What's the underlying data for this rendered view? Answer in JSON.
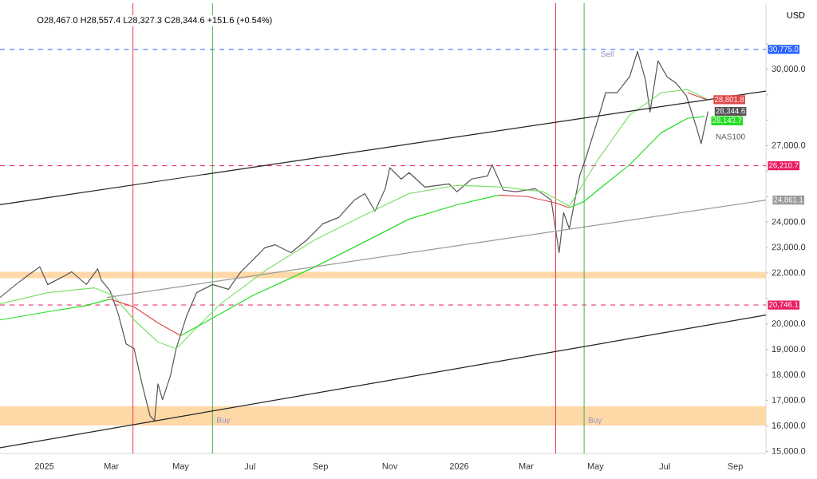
{
  "chart_data": {
    "type": "line",
    "subtitle": "O28,467.0 H28,557.4 L28,327.3 C28,344.6 +151.6 (+0.54%)",
    "xlim": [
      "2024-11-23",
      "2026-09-28"
    ],
    "xticks": [
      {
        "value": "2025-01-01",
        "label": "2025"
      },
      {
        "value": "2025-03-01",
        "label": "Mar"
      },
      {
        "value": "2025-05-01",
        "label": "May"
      },
      {
        "value": "2025-07-01",
        "label": "Jul"
      },
      {
        "value": "2025-09-01",
        "label": "Sep"
      },
      {
        "value": "2025-11-01",
        "label": "Nov"
      },
      {
        "value": "2026-01-01",
        "label": "2026"
      },
      {
        "value": "2026-03-01",
        "label": "Mar"
      },
      {
        "value": "2026-05-01",
        "label": "May"
      },
      {
        "value": "2026-07-01",
        "label": "Jul"
      },
      {
        "value": "2026-09-01",
        "label": "Sep"
      }
    ],
    "ylim": [
      14920,
      32590
    ],
    "yticks": [
      {
        "value": 15000,
        "label": "15,000.0"
      },
      {
        "value": 16000,
        "label": "16,000.0"
      },
      {
        "value": 17000,
        "label": "17,000.0"
      },
      {
        "value": 18000,
        "label": "18,000.0"
      },
      {
        "value": 19000,
        "label": "19,000.0"
      },
      {
        "value": 20000,
        "label": "20,000.0"
      },
      {
        "value": 21000,
        "label": null
      },
      {
        "value": 22000,
        "label": "22,000.0"
      },
      {
        "value": 23000,
        "label": "23,000.0"
      },
      {
        "value": 24000,
        "label": "24,000.0"
      },
      {
        "value": 25000,
        "label": null
      },
      {
        "value": 26000,
        "label": null
      },
      {
        "value": 27000,
        "label": "27,000.0"
      },
      {
        "value": 28000,
        "label": null
      },
      {
        "value": 29000,
        "label": null
      },
      {
        "value": 30000,
        "label": "30,000.0"
      },
      {
        "value": 31000,
        "label": null
      }
    ],
    "series": [
      {
        "name": "NAS100",
        "color": "#555555",
        "x": [
          "2024-11-23",
          "2024-12-07",
          "2024-12-18",
          "2024-12-28",
          "2025-01-04",
          "2025-01-15",
          "2025-01-25",
          "2025-02-07",
          "2025-02-17",
          "2025-02-20",
          "2025-02-28",
          "2025-03-07",
          "2025-03-14",
          "2025-03-21",
          "2025-03-28",
          "2025-04-04",
          "2025-04-08",
          "2025-04-11",
          "2025-04-15",
          "2025-04-22",
          "2025-04-27",
          "2025-05-06",
          "2025-05-15",
          "2025-05-29",
          "2025-06-12",
          "2025-06-23",
          "2025-07-03",
          "2025-07-14",
          "2025-07-23",
          "2025-08-06",
          "2025-08-20",
          "2025-09-03",
          "2025-09-17",
          "2025-10-01",
          "2025-10-10",
          "2025-10-19",
          "2025-10-28",
          "2025-11-01",
          "2025-11-11",
          "2025-11-18",
          "2025-12-02",
          "2025-12-23",
          "2025-12-30",
          "2026-01-12",
          "2026-01-26",
          "2026-01-30",
          "2026-02-09",
          "2026-02-20",
          "2026-03-09",
          "2026-03-23",
          "2026-03-30",
          "2026-04-03",
          "2026-04-08",
          "2026-04-17",
          "2026-04-22",
          "2026-05-03",
          "2026-05-10",
          "2026-05-20",
          "2026-05-31",
          "2026-06-07",
          "2026-06-14",
          "2026-06-18",
          "2026-06-25",
          "2026-07-03",
          "2026-07-11",
          "2026-07-20",
          "2026-07-29",
          "2026-08-02",
          "2026-08-08"
        ],
        "values": [
          21040,
          21550,
          21920,
          22240,
          21550,
          21800,
          22050,
          21550,
          22170,
          21730,
          21290,
          20400,
          19220,
          19030,
          17650,
          16400,
          16210,
          17650,
          17030,
          17970,
          19030,
          20290,
          21230,
          21550,
          21360,
          22050,
          22490,
          22990,
          23110,
          22800,
          23300,
          23930,
          24180,
          24870,
          25120,
          24430,
          25310,
          26130,
          25690,
          25940,
          25370,
          25500,
          25190,
          25690,
          25810,
          26250,
          25250,
          25190,
          25310,
          24870,
          22800,
          24370,
          23740,
          25810,
          26440,
          28010,
          29080,
          29080,
          29700,
          30700,
          29580,
          28320,
          30330,
          29700,
          29450,
          28950,
          27700,
          27070,
          28344.6
        ],
        "value_labels": [
          null,
          null,
          null,
          null,
          null,
          null,
          null,
          null,
          null,
          null,
          null,
          null,
          null,
          null,
          null,
          null,
          null,
          null,
          null,
          null,
          null,
          null,
          null,
          null,
          null,
          null,
          null,
          null,
          null,
          null,
          null,
          null,
          null,
          null,
          null,
          null,
          null,
          null,
          null,
          null,
          null,
          null,
          null,
          null,
          null,
          null,
          null,
          null,
          null,
          null,
          null,
          null,
          null,
          null,
          null,
          null,
          null,
          null,
          null,
          null,
          null,
          null,
          null,
          null,
          null,
          null,
          null,
          null,
          "28,344.6"
        ]
      },
      {
        "color": "#7ee06b",
        "x": [
          "2024-11-23",
          "2025-01-04",
          "2025-02-14",
          "2025-03-03",
          "2025-03-21",
          "2025-04-11",
          "2025-04-27",
          "2025-05-15",
          "2025-06-05",
          "2025-07-17",
          "2025-08-27",
          "2025-10-08",
          "2025-11-18",
          "2025-12-30",
          "2026-02-09",
          "2026-03-16",
          "2026-04-08",
          "2026-05-03",
          "2026-05-31",
          "2026-06-28",
          "2026-07-21",
          "2026-08-07"
        ],
        "values": [
          20790,
          21230,
          21420,
          21110,
          20160,
          19290,
          19030,
          19850,
          20790,
          22170,
          23300,
          24240,
          25120,
          25440,
          25370,
          25190,
          24620,
          26440,
          28200,
          29080,
          29200,
          28830
        ]
      },
      {
        "color": "#22dd22",
        "x": [
          "2024-11-23",
          "2025-01-04",
          "2025-02-07",
          "2025-02-28",
          "2025-04-01",
          "2025-05-01",
          "2025-05-29",
          "2025-07-03",
          "2025-08-27",
          "2025-10-08",
          "2025-11-18",
          "2025-12-30",
          "2026-02-05",
          "2026-03-01",
          "2026-04-08",
          "2026-04-21",
          "2026-05-10",
          "2026-05-31",
          "2026-06-28",
          "2026-07-21",
          "2026-08-05"
        ],
        "values": [
          20160,
          20480,
          20730,
          20980,
          null,
          19540,
          20230,
          21110,
          22240,
          23180,
          24120,
          24680,
          25060,
          null,
          24560,
          24810,
          25500,
          26250,
          27510,
          28070,
          28143.7
        ],
        "value_labels": [
          null,
          null,
          null,
          null,
          null,
          null,
          null,
          null,
          null,
          null,
          null,
          null,
          null,
          null,
          null,
          null,
          null,
          null,
          null,
          null,
          "28,143.7"
        ]
      },
      {
        "color": "#e04848",
        "x": [
          "2025-02-28",
          "2025-03-21",
          "2025-04-11",
          "2025-05-01",
          "2025-09-01",
          "2026-02-05",
          "2026-03-02",
          "2026-03-27",
          "2026-04-08",
          "2026-06-01",
          "2026-07-21",
          "2026-08-07"
        ],
        "values": [
          20980,
          20670,
          20040,
          19540,
          null,
          25060,
          25000,
          24750,
          24560,
          null,
          29080,
          28801.8
        ],
        "value_labels": [
          null,
          null,
          null,
          null,
          null,
          null,
          null,
          null,
          null,
          null,
          null,
          "28,801.8"
        ]
      },
      {
        "color": "#222222",
        "x": [
          "2024-11-23",
          "2026-09-28"
        ],
        "values": [
          24680,
          29140
        ]
      },
      {
        "color": "#222222",
        "x": [
          "2024-11-23",
          "2026-09-28"
        ],
        "values": [
          15140,
          20350
        ]
      },
      {
        "color": "#9a9a9a",
        "x": [
          "2025-02-25",
          "2026-09-28"
        ],
        "values": [
          21040,
          24861.1
        ],
        "value_labels": [
          null,
          "24,861.1"
        ]
      }
    ],
    "ref_lines": [
      {
        "axis": "y",
        "value": 30775,
        "label": "30,775.0",
        "color": "#2962ff",
        "line_style": "dashed"
      },
      {
        "axis": "y",
        "value": 26210.7,
        "label": "26,210.7",
        "color": "#e91e63",
        "line_style": "dashed"
      },
      {
        "axis": "y",
        "value": 20746.1,
        "label": "20,746.1",
        "color": "#e91e63",
        "line_style": "dashed"
      },
      {
        "axis": "x",
        "value": "2025-03-20",
        "color": "#f23645"
      },
      {
        "axis": "x",
        "value": "2025-05-29",
        "color": "#4caf50"
      },
      {
        "axis": "x",
        "value": "2026-03-27",
        "color": "#f23645"
      },
      {
        "axis": "x",
        "value": "2026-04-21",
        "color": "#4caf50"
      }
    ],
    "bands": [
      {
        "axis": "y",
        "from": 16020,
        "to": 16774,
        "color": "#ffd8a8"
      },
      {
        "axis": "y",
        "from": 21800,
        "to": 22050,
        "color": "#ffd8a8"
      }
    ],
    "annotations": [
      "USD",
      {
        "text": "Sell",
        "x": "2026-05-02",
        "y": 30775
      },
      {
        "text": "Buy",
        "x": "2025-05-29",
        "y": 16400
      },
      {
        "text": "Buy",
        "x": "2026-04-21",
        "y": 16400
      }
    ]
  }
}
